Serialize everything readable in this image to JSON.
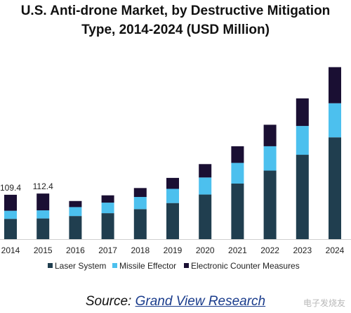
{
  "chart_data": {
    "type": "bar",
    "stacked": true,
    "title_lines": [
      "U.S. Anti-drone Market, by Destructive Mitigation",
      "Type, 2014-2024 (USD Million)"
    ],
    "categories": [
      "2014",
      "2015",
      "2016",
      "2017",
      "2018",
      "2019",
      "2020",
      "2021",
      "2022",
      "2023",
      "2024"
    ],
    "series": [
      {
        "name": "Laser System",
        "color": "#203e4f",
        "values": [
          50,
          51,
          57,
          64,
          74,
          89,
          110,
          137,
          169,
          208,
          251
        ]
      },
      {
        "name": "Missile Effector",
        "color": "#4cc0ee",
        "values": [
          20,
          20,
          22,
          26,
          30,
          35,
          42,
          51,
          60,
          71,
          84
        ]
      },
      {
        "name": "Electronic Counter Measures",
        "color": "#1a0f33",
        "values": [
          39.4,
          41.4,
          15,
          18,
          22,
          27,
          33,
          41,
          53,
          68,
          89
        ]
      }
    ],
    "data_labels": [
      {
        "category": "2014",
        "text": "109.4"
      },
      {
        "category": "2015",
        "text": "112.4"
      }
    ],
    "ylim": [
      0,
      430
    ],
    "grid": false,
    "legend_position": "bottom"
  },
  "source": {
    "prefix": "Source:",
    "link_text": "Grand View Research"
  },
  "watermark": "电子发烧友"
}
